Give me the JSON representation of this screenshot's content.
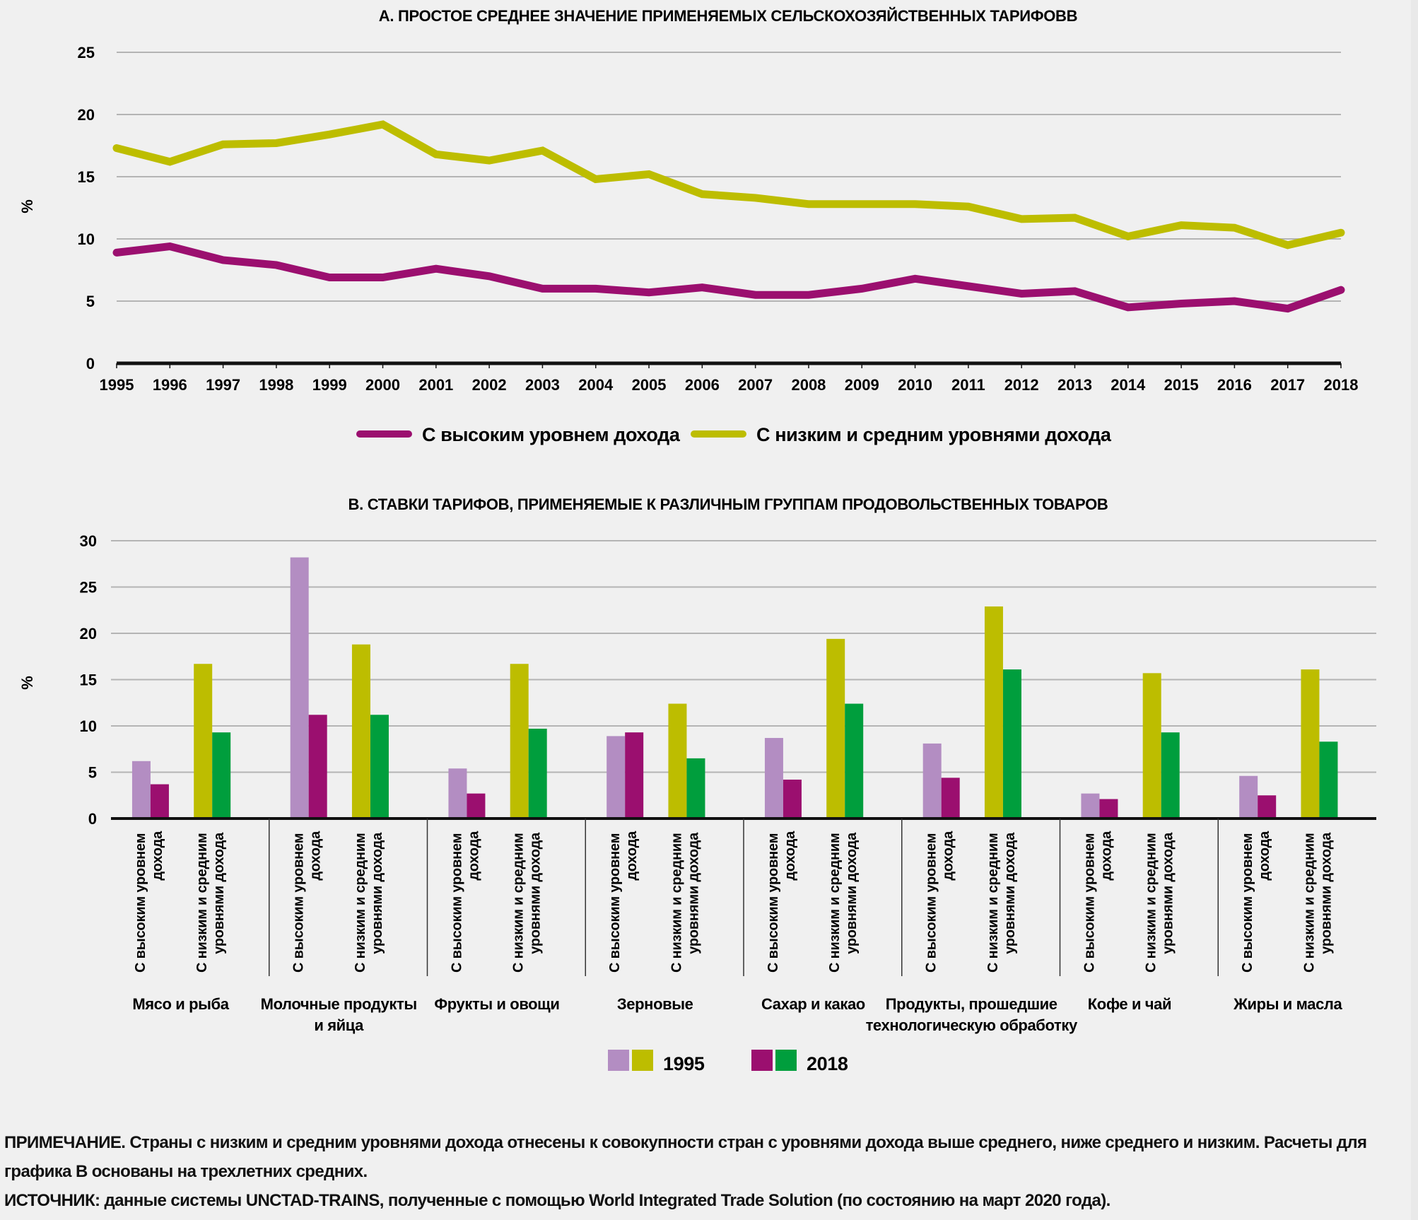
{
  "chart_data": [
    {
      "type": "line",
      "title": "А. ПРОСТОЕ СРЕДНЕЕ ЗНАЧЕНИЕ ПРИМЕНЯЕМЫХ СЕЛЬСКОХОЗЯЙСТВЕННЫХ ТАРИФОВВ",
      "xlabel": "",
      "ylabel": "%",
      "ylim": [
        0,
        25
      ],
      "yticks": [
        0,
        5,
        10,
        15,
        20,
        25
      ],
      "grid": true,
      "legend_position": "bottom-center",
      "x": [
        1995,
        1996,
        1997,
        1998,
        1999,
        2000,
        2001,
        2002,
        2003,
        2004,
        2005,
        2006,
        2007,
        2008,
        2009,
        2010,
        2011,
        2012,
        2013,
        2014,
        2015,
        2016,
        2017,
        2018
      ],
      "series": [
        {
          "name": "С высоким уровнем дохода",
          "color": "#9b0f6f",
          "values": [
            8.9,
            9.4,
            8.3,
            7.9,
            6.9,
            6.9,
            7.6,
            7.0,
            6.0,
            6.0,
            5.7,
            6.1,
            5.5,
            5.5,
            6.0,
            6.8,
            6.2,
            5.6,
            5.8,
            4.5,
            4.8,
            5.0,
            4.4,
            5.9
          ]
        },
        {
          "name": "С низким и средним уровнями дохода",
          "color": "#bdbd00",
          "values": [
            17.3,
            16.2,
            17.6,
            17.7,
            18.4,
            19.2,
            16.8,
            16.3,
            17.1,
            14.8,
            15.2,
            13.6,
            13.3,
            12.8,
            12.8,
            12.8,
            12.6,
            11.6,
            11.7,
            10.2,
            11.1,
            10.9,
            9.5,
            10.5
          ]
        }
      ]
    },
    {
      "type": "bar",
      "title": "B. СТАВКИ ТАРИФОВ, ПРИМЕНЯЕМЫЕ К РАЗЛИЧНЫМ ГРУППАМ ПРОДОВОЛЬСТВЕННЫХ ТОВАРОВ",
      "xlabel": "",
      "ylabel": "%",
      "ylim": [
        0,
        30
      ],
      "yticks": [
        0,
        5,
        10,
        15,
        20,
        25,
        30
      ],
      "grid": true,
      "legend_position": "bottom-center",
      "subgroups": [
        "С высоким уровнем дохода",
        "С низким и средним уровнями дохода"
      ],
      "categories": [
        "Мясо и рыба",
        "Молочные продукты и яйца",
        "Фрукты и овощи",
        "Зерновые",
        "Сахар и какао",
        "Продукты, прошедшие технологическую обработку",
        "Кофе и чай",
        "Жиры и масла"
      ],
      "category_label_lines": [
        [
          "Мясо и рыба"
        ],
        [
          "Молочные продукты",
          "и яйца"
        ],
        [
          "Фрукты и овощи"
        ],
        [
          "Зерновые"
        ],
        [
          "Сахар и какао"
        ],
        [
          "Продукты, прошедшие",
          "технологическую обработку"
        ],
        [
          "Кофе и чай"
        ],
        [
          "Жиры и масла"
        ]
      ],
      "subgroup_label_lines": [
        [
          "С высоким уровнем",
          "дохода"
        ],
        [
          "С низким и средним",
          "уровнями дохода"
        ]
      ],
      "series": [
        {
          "name": "1995 — С высоким уровнем дохода",
          "year": "1995",
          "subgroup": 0,
          "color": "#b38dc2",
          "values": [
            6.2,
            28.2,
            5.4,
            8.9,
            8.7,
            8.1,
            2.7,
            4.6
          ]
        },
        {
          "name": "2018 — С высоким уровнем дохода",
          "year": "2018",
          "subgroup": 0,
          "color": "#9b0f6f",
          "values": [
            3.7,
            11.2,
            2.7,
            9.3,
            4.2,
            4.4,
            2.1,
            2.5
          ]
        },
        {
          "name": "1995 — С низким и средним уровнями дохода",
          "year": "1995",
          "subgroup": 1,
          "color": "#bdbd00",
          "values": [
            16.7,
            18.8,
            16.7,
            12.4,
            19.4,
            22.9,
            15.7,
            16.1
          ]
        },
        {
          "name": "2018 — С низким и средним уровнями дохода",
          "year": "2018",
          "subgroup": 1,
          "color": "#009e3d",
          "values": [
            9.3,
            11.2,
            9.7,
            6.5,
            12.4,
            16.1,
            9.3,
            8.3
          ]
        }
      ],
      "legend": [
        {
          "label": "1995",
          "colors": [
            "#b38dc2",
            "#bdbd00"
          ]
        },
        {
          "label": "2018",
          "colors": [
            "#9b0f6f",
            "#009e3d"
          ]
        }
      ]
    }
  ],
  "notes": {
    "note_line1": "ПРИМЕЧАНИЕ. Страны с низким и средним уровнями дохода отнесены к совокупности стран с уровнями дохода выше среднего, ниже среднего и низким. Расчеты для",
    "note_line2": "графика В основаны на трехлетних средних.",
    "source_line": "ИСТОЧНИК: данные системы UNCTAD-TRAINS, полученные с помощью World Integrated Trade Solution (по состоянию на март 2020 года)."
  },
  "colors": {
    "background": "#f0f0f0",
    "gridline": "#b4b4b4",
    "axis": "#111111"
  }
}
